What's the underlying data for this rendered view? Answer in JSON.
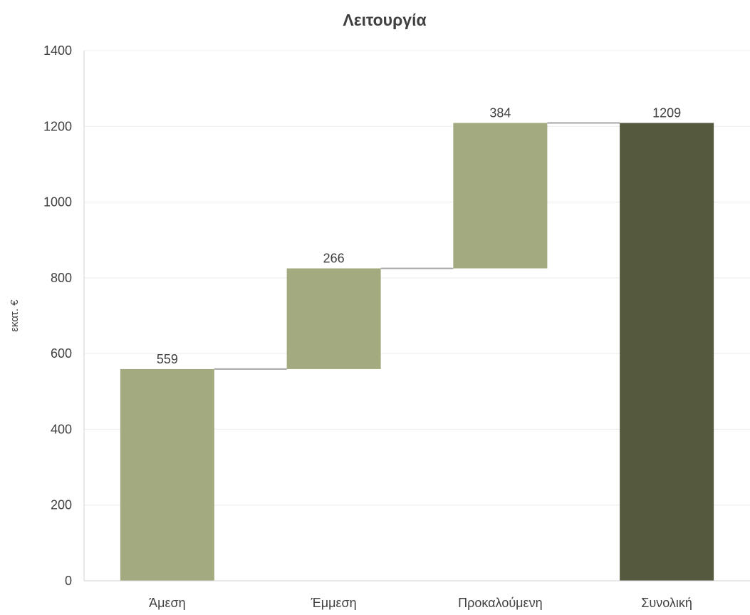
{
  "chart_data": {
    "type": "bar",
    "title": "Λειτουργία",
    "xlabel": "",
    "ylabel": "εκατ. €",
    "categories": [
      "Άμεση",
      "Έμμεση",
      "Προκαλούμενη",
      "Συνολική"
    ],
    "values": [
      559,
      266,
      384,
      1209
    ],
    "bases": [
      0,
      559,
      825,
      0
    ],
    "data_labels": [
      "559",
      "266",
      "384",
      "1209"
    ],
    "ylim": [
      0,
      1400
    ],
    "yticks": [
      0,
      200,
      400,
      600,
      800,
      1000,
      1200,
      1400
    ],
    "grid": true,
    "legend": "none",
    "connectors": true,
    "colors": {
      "increment": "#a4aa80",
      "total": "#555a3e",
      "connector": "#a6a6a6",
      "grid": "#ececec",
      "axis": "#d0d0d0",
      "text": "#404040"
    }
  }
}
